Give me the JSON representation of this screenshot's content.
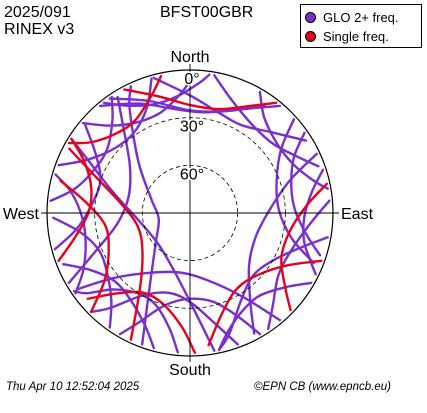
{
  "header": {
    "date_doy": "2025/091",
    "rinex_version": "RINEX v3",
    "station": "BFST00GBR"
  },
  "footer": {
    "timestamp": "Thu Apr 10 12:52:04 2025",
    "credit": "©EPN CB (www.epncb.eu)"
  },
  "legend": {
    "items": [
      {
        "label": "GLO 2+ freq.",
        "color": "#7a2fd0"
      },
      {
        "label": "Single freq.",
        "color": "#e8001c"
      }
    ]
  },
  "chart_data": {
    "type": "polar-skyplot",
    "directions": {
      "north": "North",
      "south": "South",
      "east": "East",
      "west": "West"
    },
    "elevation_ticks": [
      {
        "value": 0,
        "label": "0°"
      },
      {
        "value": 30,
        "label": "30°"
      },
      {
        "value": 60,
        "label": "60°"
      }
    ],
    "elevation_range": [
      0,
      90
    ],
    "series": [
      {
        "name": "GLO 2+ freq.",
        "color": "#7a2fd0",
        "tracks": [
          [
            [
              -40,
              2
            ],
            [
              -25,
              14
            ],
            [
              -8,
              24
            ],
            [
              8,
              26
            ],
            [
              22,
              20
            ],
            [
              35,
              8
            ]
          ],
          [
            [
              -35,
              2
            ],
            [
              -20,
              15
            ],
            [
              -2,
              25
            ],
            [
              15,
              24
            ],
            [
              30,
              14
            ],
            [
              40,
              2
            ]
          ],
          [
            [
              -15,
              2
            ],
            [
              0,
              16
            ],
            [
              15,
              24
            ],
            [
              30,
              26
            ],
            [
              45,
              18
            ],
            [
              58,
              4
            ]
          ],
          [
            [
              10,
              2
            ],
            [
              20,
              14
            ],
            [
              35,
              22
            ],
            [
              50,
              22
            ],
            [
              62,
              14
            ],
            [
              70,
              4
            ]
          ],
          [
            [
              30,
              2
            ],
            [
              38,
              14
            ],
            [
              52,
              20
            ],
            [
              65,
              18
            ],
            [
              75,
              10
            ],
            [
              80,
              2
            ]
          ],
          [
            [
              55,
              2
            ],
            [
              62,
              16
            ],
            [
              75,
              24
            ],
            [
              88,
              24
            ],
            [
              100,
              16
            ],
            [
              108,
              4
            ]
          ],
          [
            [
              72,
              2
            ],
            [
              80,
              12
            ],
            [
              92,
              18
            ],
            [
              104,
              16
            ],
            [
              112,
              8
            ],
            [
              116,
              2
            ]
          ],
          [
            [
              85,
              2
            ],
            [
              95,
              14
            ],
            [
              110,
              22
            ],
            [
              125,
              22
            ],
            [
              138,
              12
            ],
            [
              146,
              2
            ]
          ],
          [
            [
              100,
              2
            ],
            [
              108,
              18
            ],
            [
              120,
              30
            ],
            [
              135,
              34
            ],
            [
              150,
              26
            ],
            [
              162,
              10
            ],
            [
              168,
              2
            ]
          ],
          [
            [
              120,
              2
            ],
            [
              128,
              14
            ],
            [
              140,
              22
            ],
            [
              152,
              20
            ],
            [
              162,
              12
            ],
            [
              168,
              2
            ]
          ],
          [
            [
              150,
              2
            ],
            [
              155,
              18
            ],
            [
              165,
              32
            ],
            [
              180,
              36
            ],
            [
              195,
              30
            ],
            [
              205,
              14
            ],
            [
              210,
              2
            ]
          ],
          [
            [
              160,
              2
            ],
            [
              168,
              20
            ],
            [
              180,
              34
            ],
            [
              195,
              38
            ],
            [
              210,
              30
            ],
            [
              220,
              12
            ],
            [
              225,
              2
            ]
          ],
          [
            [
              185,
              2
            ],
            [
              190,
              16
            ],
            [
              200,
              28
            ],
            [
              212,
              30
            ],
            [
              225,
              22
            ],
            [
              232,
              8
            ],
            [
              236,
              2
            ]
          ],
          [
            [
              195,
              2
            ],
            [
              202,
              14
            ],
            [
              215,
              24
            ],
            [
              228,
              26
            ],
            [
              240,
              18
            ],
            [
              248,
              4
            ]
          ],
          [
            [
              215,
              2
            ],
            [
              222,
              16
            ],
            [
              235,
              26
            ],
            [
              248,
              28
            ],
            [
              260,
              20
            ],
            [
              268,
              4
            ]
          ],
          [
            [
              235,
              2
            ],
            [
              242,
              14
            ],
            [
              255,
              22
            ],
            [
              268,
              22
            ],
            [
              280,
              14
            ],
            [
              286,
              2
            ]
          ],
          [
            [
              255,
              2
            ],
            [
              262,
              18
            ],
            [
              275,
              28
            ],
            [
              290,
              30
            ],
            [
              302,
              20
            ],
            [
              310,
              4
            ]
          ],
          [
            [
              275,
              2
            ],
            [
              282,
              16
            ],
            [
              295,
              24
            ],
            [
              308,
              24
            ],
            [
              320,
              14
            ],
            [
              326,
              2
            ]
          ],
          [
            [
              290,
              2
            ],
            [
              298,
              18
            ],
            [
              312,
              28
            ],
            [
              326,
              28
            ],
            [
              338,
              18
            ],
            [
              344,
              2
            ]
          ],
          [
            [
              310,
              2
            ],
            [
              318,
              16
            ],
            [
              330,
              24
            ],
            [
              344,
              24
            ],
            [
              356,
              14
            ],
            [
              2,
              2
            ]
          ],
          [
            [
              322,
              2
            ],
            [
              330,
              12
            ],
            [
              342,
              18
            ],
            [
              354,
              16
            ],
            [
              4,
              8
            ],
            [
              8,
              2
            ]
          ],
          [
            [
              200,
              2
            ],
            [
              210,
              40
            ],
            [
              230,
              62
            ],
            [
              260,
              70
            ],
            [
              290,
              64
            ],
            [
              315,
              44
            ],
            [
              330,
              14
            ],
            [
              335,
              2
            ]
          ],
          [
            [
              170,
              2
            ],
            [
              178,
              30
            ],
            [
              195,
              52
            ],
            [
              225,
              62
            ],
            [
              260,
              58
            ],
            [
              285,
              40
            ],
            [
              298,
              16
            ],
            [
              302,
              2
            ]
          ],
          [
            [
              140,
              2
            ],
            [
              148,
              28
            ],
            [
              165,
              46
            ],
            [
              190,
              52
            ],
            [
              215,
              44
            ],
            [
              230,
              26
            ],
            [
              236,
              4
            ]
          ],
          [
            [
              65,
              2
            ],
            [
              72,
              24
            ],
            [
              88,
              40
            ],
            [
              110,
              46
            ],
            [
              132,
              40
            ],
            [
              146,
              22
            ],
            [
              152,
              4
            ]
          ],
          [
            [
              48,
              2
            ],
            [
              55,
              20
            ],
            [
              70,
              32
            ],
            [
              88,
              34
            ],
            [
              104,
              24
            ],
            [
              112,
              6
            ]
          ],
          [
            [
              240,
              2
            ],
            [
              248,
              26
            ],
            [
              262,
              44
            ],
            [
              285,
              50
            ],
            [
              308,
              42
            ],
            [
              322,
              22
            ],
            [
              328,
              4
            ]
          ]
        ]
      },
      {
        "name": "Single freq.",
        "color": "#e8001c",
        "tracks": [
          [
            [
              -28,
              2
            ],
            [
              -15,
              14
            ],
            [
              0,
              22
            ],
            [
              16,
              22
            ],
            [
              30,
              12
            ],
            [
              38,
              2
            ]
          ],
          [
            [
              110,
              2
            ],
            [
              118,
              20
            ],
            [
              132,
              32
            ],
            [
              148,
              34
            ],
            [
              162,
              24
            ],
            [
              172,
              6
            ]
          ],
          [
            [
              178,
              2
            ],
            [
              184,
              18
            ],
            [
              196,
              30
            ],
            [
              210,
              32
            ],
            [
              222,
              22
            ],
            [
              230,
              6
            ]
          ],
          [
            [
              225,
              2
            ],
            [
              232,
              22
            ],
            [
              246,
              34
            ],
            [
              262,
              36
            ],
            [
              276,
              24
            ],
            [
              284,
              6
            ]
          ],
          [
            [
              250,
              2
            ],
            [
              258,
              16
            ],
            [
              270,
              26
            ],
            [
              284,
              26
            ],
            [
              296,
              16
            ],
            [
              302,
              2
            ]
          ],
          [
            [
              300,
              2
            ],
            [
              306,
              14
            ],
            [
              318,
              22
            ],
            [
              330,
              22
            ],
            [
              342,
              12
            ],
            [
              348,
              2
            ]
          ],
          [
            [
              78,
              2
            ],
            [
              86,
              16
            ],
            [
              100,
              26
            ],
            [
              116,
              26
            ],
            [
              128,
              14
            ],
            [
              134,
              2
            ]
          ],
          [
            [
              205,
              2
            ],
            [
              214,
              34
            ],
            [
              232,
              52
            ],
            [
              256,
              56
            ],
            [
              278,
              46
            ],
            [
              292,
              24
            ],
            [
              298,
              4
            ]
          ]
        ]
      }
    ]
  }
}
